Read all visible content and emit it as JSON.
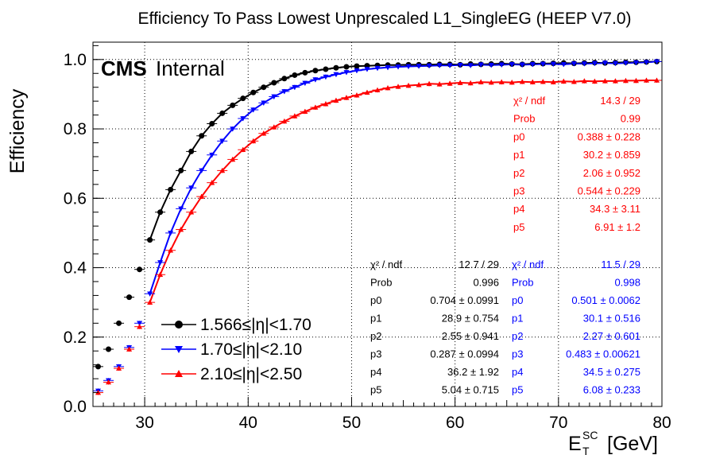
{
  "chart_data": {
    "type": "scatter",
    "title": "Efficiency To Pass Lowest Unprescaled L1_SingleEG (HEEP V7.0)",
    "ylabel": "Efficiency",
    "xlabel_main": "E",
    "xlabel_sup": "SC",
    "xlabel_sub": "T",
    "xlabel_unit": "[GeV]",
    "xlim": [
      25,
      80
    ],
    "ylim": [
      0,
      1.05
    ],
    "xticks": [
      "30",
      "40",
      "50",
      "60",
      "70",
      "80"
    ],
    "yticks": [
      "0.0",
      "0.2",
      "0.4",
      "0.6",
      "0.8",
      "1.0"
    ],
    "grid": true,
    "cms_label": "CMS",
    "cms_sublabel": "Internal",
    "legend_position": "bottom-left",
    "series": [
      {
        "name": "1.566≤|η|<1.70",
        "color": "#000000",
        "marker": "circle",
        "x": [
          25.5,
          26.5,
          27.5,
          28.5,
          29.5,
          30.5,
          31.5,
          32.5,
          33.5,
          34.5,
          35.5,
          36.5,
          37.5,
          38.5,
          39.5,
          40.5,
          41.5,
          42.5,
          43.5,
          44.5,
          45.5,
          46.5,
          47.5,
          48.5,
          49.5,
          50.5,
          51.5,
          52.5,
          53.5,
          54.5,
          55.5,
          56.5,
          57.5,
          58.5,
          59.5,
          60.5,
          61.5,
          62.5,
          63.5,
          64.5,
          65.5,
          66.5,
          67.5,
          68.5,
          69.5,
          70.5,
          71.5,
          72.5,
          73.5,
          74.5,
          75.5,
          76.5,
          77.5,
          78.5,
          79.5
        ],
        "y": [
          0.115,
          0.165,
          0.24,
          0.315,
          0.395,
          0.48,
          0.56,
          0.625,
          0.68,
          0.735,
          0.78,
          0.815,
          0.845,
          0.868,
          0.888,
          0.905,
          0.92,
          0.933,
          0.945,
          0.955,
          0.962,
          0.968,
          0.972,
          0.976,
          0.979,
          0.981,
          0.982,
          0.983,
          0.984,
          0.984,
          0.985,
          0.985,
          0.985,
          0.986,
          0.986,
          0.985,
          0.987,
          0.986,
          0.987,
          0.988,
          0.987,
          0.986,
          0.988,
          0.988,
          0.989,
          0.99,
          0.989,
          0.99,
          0.991,
          0.99,
          0.991,
          0.992,
          0.992,
          0.993,
          0.994
        ],
        "fit": {
          "chi2_ndf": "12.7 / 29",
          "prob": "0.996",
          "p0": "0.704 ± 0.0991",
          "p1": "28.9 ± 0.754",
          "p2": "2.55 ± 0.941",
          "p3": "0.287 ± 0.0994",
          "p4": "36.2 ±  1.92",
          "p5": "5.04 ± 0.715"
        }
      },
      {
        "name": "1.70≤|η|<2.10",
        "color": "#0000ff",
        "marker": "triangle-down",
        "x": [
          25.5,
          26.5,
          27.5,
          28.5,
          29.5,
          30.5,
          31.5,
          32.5,
          33.5,
          34.5,
          35.5,
          36.5,
          37.5,
          38.5,
          39.5,
          40.5,
          41.5,
          42.5,
          43.5,
          44.5,
          45.5,
          46.5,
          47.5,
          48.5,
          49.5,
          50.5,
          51.5,
          52.5,
          53.5,
          54.5,
          55.5,
          56.5,
          57.5,
          58.5,
          59.5,
          60.5,
          61.5,
          62.5,
          63.5,
          64.5,
          65.5,
          66.5,
          67.5,
          68.5,
          69.5,
          70.5,
          71.5,
          72.5,
          73.5,
          74.5,
          75.5,
          76.5,
          77.5,
          78.5,
          79.5
        ],
        "y": [
          0.045,
          0.075,
          0.115,
          0.17,
          0.24,
          0.325,
          0.415,
          0.5,
          0.57,
          0.63,
          0.68,
          0.725,
          0.765,
          0.8,
          0.83,
          0.855,
          0.875,
          0.893,
          0.908,
          0.92,
          0.932,
          0.942,
          0.95,
          0.957,
          0.963,
          0.968,
          0.972,
          0.975,
          0.977,
          0.979,
          0.98,
          0.981,
          0.982,
          0.983,
          0.983,
          0.984,
          0.983,
          0.985,
          0.984,
          0.985,
          0.986,
          0.985,
          0.986,
          0.987,
          0.987,
          0.986,
          0.988,
          0.988,
          0.989,
          0.99,
          0.989,
          0.99,
          0.991,
          0.992,
          0.994
        ],
        "fit": {
          "chi2_ndf": "11.5 / 29",
          "prob": "0.998",
          "p0": "0.501 ± 0.0062",
          "p1": "30.1 ± 0.516",
          "p2": "2.27 ± 0.601",
          "p3": "0.483 ± 0.00621",
          "p4": "34.5 ± 0.275",
          "p5": "6.08 ± 0.233"
        }
      },
      {
        "name": "2.10≤|η|<2.50",
        "color": "#ff0000",
        "marker": "triangle-up",
        "x": [
          25.5,
          26.5,
          27.5,
          28.5,
          29.5,
          30.5,
          31.5,
          32.5,
          33.5,
          34.5,
          35.5,
          36.5,
          37.5,
          38.5,
          39.5,
          40.5,
          41.5,
          42.5,
          43.5,
          44.5,
          45.5,
          46.5,
          47.5,
          48.5,
          49.5,
          50.5,
          51.5,
          52.5,
          53.5,
          54.5,
          55.5,
          56.5,
          57.5,
          58.5,
          59.5,
          60.5,
          61.5,
          62.5,
          63.5,
          64.5,
          65.5,
          66.5,
          67.5,
          68.5,
          69.5,
          70.5,
          71.5,
          72.5,
          73.5,
          74.5,
          75.5,
          76.5,
          77.5,
          78.5,
          79.5
        ],
        "y": [
          0.04,
          0.07,
          0.11,
          0.165,
          0.23,
          0.3,
          0.38,
          0.45,
          0.51,
          0.56,
          0.605,
          0.645,
          0.68,
          0.712,
          0.74,
          0.765,
          0.787,
          0.805,
          0.822,
          0.837,
          0.85,
          0.862,
          0.872,
          0.882,
          0.89,
          0.897,
          0.905,
          0.912,
          0.918,
          0.922,
          0.925,
          0.927,
          0.93,
          0.929,
          0.931,
          0.933,
          0.932,
          0.935,
          0.934,
          0.935,
          0.934,
          0.936,
          0.935,
          0.936,
          0.935,
          0.937,
          0.936,
          0.938,
          0.937,
          0.938,
          0.938,
          0.939,
          0.939,
          0.94,
          0.94
        ],
        "fit": {
          "chi2_ndf": "14.3 / 29",
          "prob": "0.99",
          "p0": "0.388 ± 0.228",
          "p1": "30.2 ± 0.859",
          "p2": "2.06 ± 0.952",
          "p3": "0.544 ± 0.229",
          "p4": "34.3 ±  3.11",
          "p5": "6.91 ±   1.2"
        }
      }
    ],
    "fit_labels": [
      "χ² / ndf",
      "Prob",
      "p0",
      "p1",
      "p2",
      "p3",
      "p4",
      "p5"
    ]
  }
}
